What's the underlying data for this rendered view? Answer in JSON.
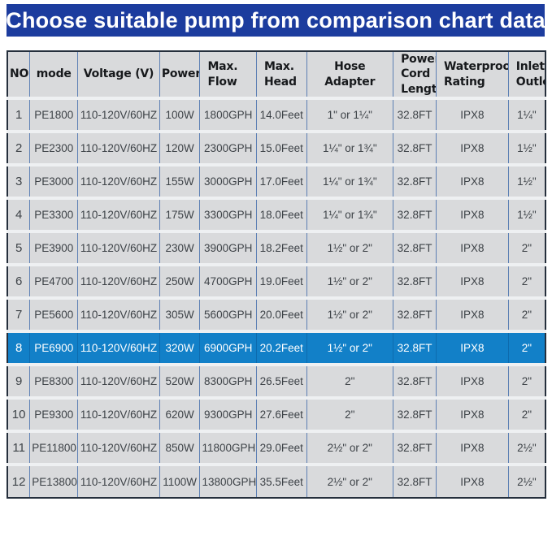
{
  "banner": {
    "title": "Choose suitable pump from comparison chart data",
    "bg_color": "#1c3c9e",
    "text_color": "#ffffff"
  },
  "chart_data": {
    "type": "table",
    "title": "Choose suitable pump from comparison chart data",
    "columns": [
      {
        "id": "no",
        "label": "NO",
        "align": "center"
      },
      {
        "id": "mode",
        "label": "mode",
        "align": "center"
      },
      {
        "id": "voltage",
        "label": "Voltage (V)",
        "align": "center"
      },
      {
        "id": "power",
        "label": "Power",
        "align": "center"
      },
      {
        "id": "max_flow",
        "label": "Max.\nFlow",
        "align": "left"
      },
      {
        "id": "max_head",
        "label": "Max.\nHead",
        "align": "left"
      },
      {
        "id": "hose_adapter",
        "label": "Hose Adapter",
        "align": "center"
      },
      {
        "id": "power_cord_length",
        "label": "Power\nCord\nLength",
        "align": "left"
      },
      {
        "id": "waterproof_rating",
        "label": "Waterproof\nRating",
        "align": "left"
      },
      {
        "id": "inlet_outlet",
        "label": "Inlet/\nOutlet",
        "align": "left"
      }
    ],
    "rows": [
      {
        "highlight": false,
        "cells": [
          "1",
          "PE1800",
          "110-120V/60HZ",
          "100W",
          "1800GPH",
          "14.0Feet",
          "1\" or 1¼\"",
          "32.8FT",
          "IPX8",
          "1¼\""
        ]
      },
      {
        "highlight": false,
        "cells": [
          "2",
          "PE2300",
          "110-120V/60HZ",
          "120W",
          "2300GPH",
          "15.0Feet",
          "1¼\" or 1¾\"",
          "32.8FT",
          "IPX8",
          "1½\""
        ]
      },
      {
        "highlight": false,
        "cells": [
          "3",
          "PE3000",
          "110-120V/60HZ",
          "155W",
          "3000GPH",
          "17.0Feet",
          "1¼\" or 1¾\"",
          "32.8FT",
          "IPX8",
          "1½\""
        ]
      },
      {
        "highlight": false,
        "cells": [
          "4",
          "PE3300",
          "110-120V/60HZ",
          "175W",
          "3300GPH",
          "18.0Feet",
          "1¼\" or 1¾\"",
          "32.8FT",
          "IPX8",
          "1½\""
        ]
      },
      {
        "highlight": false,
        "cells": [
          "5",
          "PE3900",
          "110-120V/60HZ",
          "230W",
          "3900GPH",
          "18.2Feet",
          "1½\" or 2\"",
          "32.8FT",
          "IPX8",
          "2\""
        ]
      },
      {
        "highlight": false,
        "cells": [
          "6",
          "PE4700",
          "110-120V/60HZ",
          "250W",
          "4700GPH",
          "19.0Feet",
          "1½\" or 2\"",
          "32.8FT",
          "IPX8",
          "2\""
        ]
      },
      {
        "highlight": false,
        "cells": [
          "7",
          "PE5600",
          "110-120V/60HZ",
          "305W",
          "5600GPH",
          "20.0Feet",
          "1½\" or 2\"",
          "32.8FT",
          "IPX8",
          "2\""
        ]
      },
      {
        "highlight": true,
        "cells": [
          "8",
          "PE6900",
          "110-120V/60HZ",
          "320W",
          "6900GPH",
          "20.2Feet",
          "1½\" or 2\"",
          "32.8FT",
          "IPX8",
          "2\""
        ]
      },
      {
        "highlight": false,
        "cells": [
          "9",
          "PE8300",
          "110-120V/60HZ",
          "520W",
          "8300GPH",
          "26.5Feet",
          "2\"",
          "32.8FT",
          "IPX8",
          "2\""
        ]
      },
      {
        "highlight": false,
        "cells": [
          "10",
          "PE9300",
          "110-120V/60HZ",
          "620W",
          "9300GPH",
          "27.6Feet",
          "2\"",
          "32.8FT",
          "IPX8",
          "2\""
        ]
      },
      {
        "highlight": false,
        "cells": [
          "11",
          "PE11800",
          "110-120V/60HZ",
          "850W",
          "11800GPH",
          "29.0Feet",
          "2½\" or 2\"",
          "32.8FT",
          "IPX8",
          "2½\""
        ]
      },
      {
        "highlight": false,
        "cells": [
          "12",
          "PE13800",
          "110-120V/60HZ",
          "1100W",
          "13800GPH",
          "35.5Feet",
          "2½\" or 2\"",
          "32.8FT",
          "IPX8",
          "2½\""
        ]
      }
    ],
    "highlighted_row_no": "8",
    "layout": {
      "column_widths_pct": [
        4.2,
        8.9,
        15.2,
        7.5,
        10.5,
        9.3,
        16.1,
        8.0,
        13.4,
        6.9
      ],
      "grid": true,
      "legend": "none"
    },
    "colors": {
      "banner_bg": "#1c3c9e",
      "highlight_bg": "#1280c8",
      "highlight_fg": "#ffffff",
      "cell_bg": "#d9dadc",
      "grid_line": "#5d80b4",
      "row_gap": "#eef0f2",
      "outer_border": "#252f3c",
      "text": "#3d4247"
    }
  }
}
